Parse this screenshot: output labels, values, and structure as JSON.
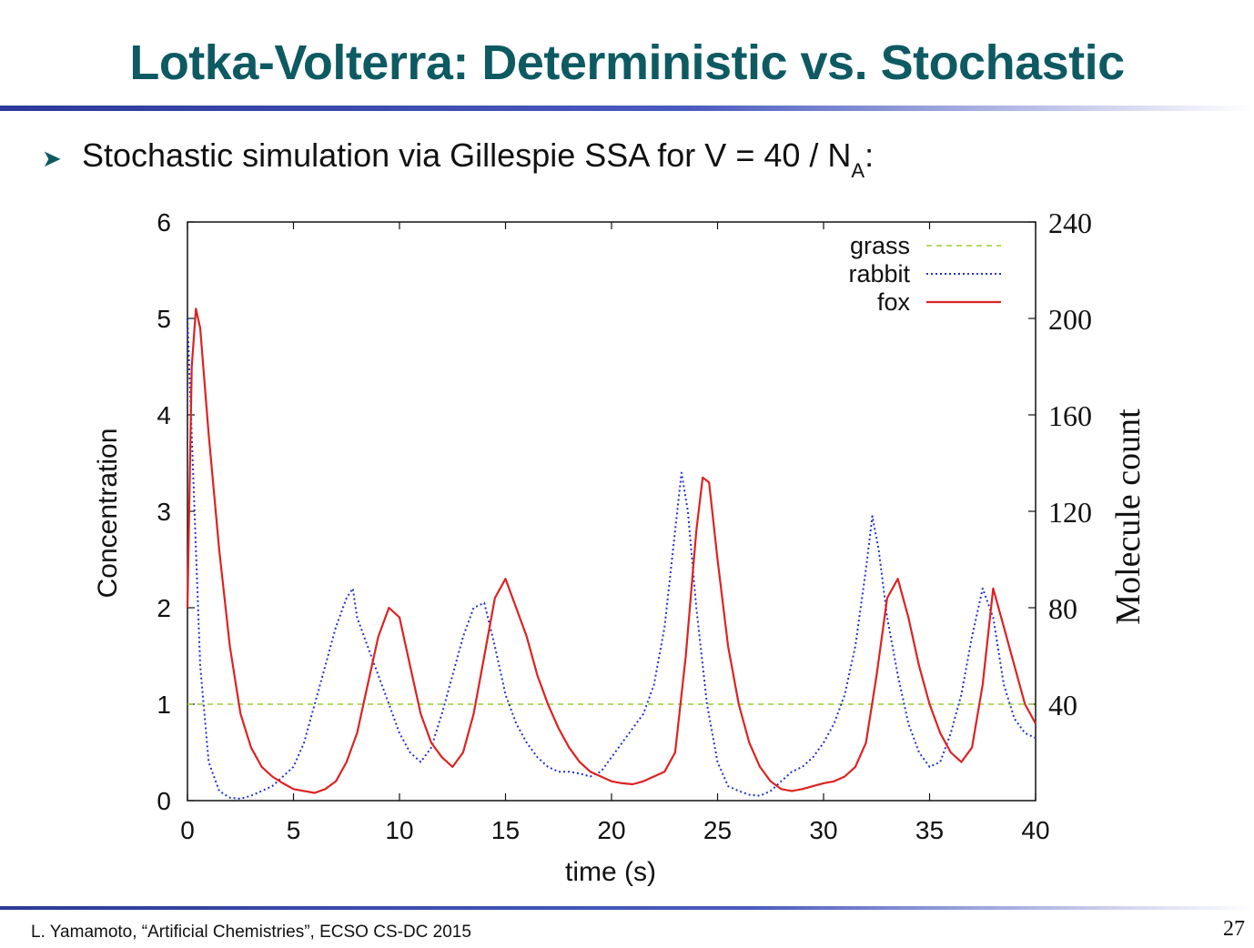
{
  "slide": {
    "title": "Lotka-Volterra: Deterministic vs. Stochastic",
    "bullet_icon": "arrowhead-bullet-icon",
    "subtitle_main": "Stochastic simulation via Gillespie SSA for V = 40 / N",
    "subtitle_sub": "A",
    "subtitle_tail": ":",
    "footer": "L. Yamamoto, “Artificial Chemistries”, ECSO CS-DC 2015",
    "page": "27",
    "colors": {
      "title": "#0e5a63",
      "rule": "#2b3a9a"
    }
  },
  "chart_data": {
    "type": "line",
    "title": "",
    "xlabel": "time (s)",
    "ylabel": "Concentration",
    "y2label": "Molecule count",
    "xlim": [
      0,
      40
    ],
    "ylim": [
      0,
      6
    ],
    "y2lim": [
      0,
      240
    ],
    "xticks": [
      "0",
      "5",
      "10",
      "15",
      "20",
      "25",
      "30",
      "35",
      "40"
    ],
    "yticks": [
      "0",
      "1",
      "2",
      "3",
      "4",
      "5",
      "6"
    ],
    "y2ticks": [
      "40",
      "80",
      "120",
      "160",
      "200",
      "240"
    ],
    "grid": false,
    "legend_position": "top-right",
    "series": [
      {
        "name": "grass",
        "color": "#9acd32",
        "style": "dashed",
        "x": [
          0,
          40
        ],
        "y": [
          1.0,
          1.0
        ]
      },
      {
        "name": "rabbit",
        "color": "#2233cc",
        "style": "dotted",
        "x": [
          0,
          0.3,
          0.6,
          1.0,
          1.5,
          2.0,
          2.5,
          3.0,
          3.5,
          4.0,
          4.5,
          5.0,
          5.5,
          6.0,
          6.5,
          7.0,
          7.5,
          7.8,
          8.0,
          8.5,
          9.0,
          9.5,
          10.0,
          10.5,
          11.0,
          11.5,
          12.0,
          12.5,
          13.0,
          13.5,
          14.0,
          14.5,
          15.0,
          15.5,
          16.0,
          16.5,
          17.0,
          17.5,
          18.0,
          18.5,
          19.0,
          19.5,
          20.0,
          20.5,
          21.0,
          21.5,
          22.0,
          22.5,
          23.0,
          23.3,
          23.6,
          24.0,
          24.5,
          25.0,
          25.5,
          26.0,
          26.5,
          27.0,
          27.5,
          28.0,
          28.5,
          29.0,
          29.5,
          30.0,
          30.5,
          31.0,
          31.5,
          32.0,
          32.3,
          32.6,
          33.0,
          33.5,
          34.0,
          34.5,
          35.0,
          35.5,
          36.0,
          36.5,
          37.0,
          37.5,
          38.0,
          38.5,
          39.0,
          39.5,
          40.0
        ],
        "y": [
          5.0,
          3.2,
          1.4,
          0.4,
          0.1,
          0.03,
          0.02,
          0.05,
          0.1,
          0.15,
          0.25,
          0.35,
          0.6,
          1.0,
          1.4,
          1.8,
          2.1,
          2.2,
          1.9,
          1.6,
          1.3,
          1.0,
          0.7,
          0.5,
          0.4,
          0.55,
          0.9,
          1.3,
          1.7,
          2.0,
          2.05,
          1.6,
          1.1,
          0.8,
          0.6,
          0.45,
          0.35,
          0.3,
          0.3,
          0.28,
          0.25,
          0.3,
          0.45,
          0.6,
          0.75,
          0.9,
          1.2,
          1.8,
          2.8,
          3.4,
          3.0,
          2.0,
          1.0,
          0.4,
          0.15,
          0.1,
          0.06,
          0.05,
          0.1,
          0.2,
          0.3,
          0.35,
          0.45,
          0.6,
          0.8,
          1.1,
          1.6,
          2.4,
          2.95,
          2.6,
          1.9,
          1.3,
          0.8,
          0.5,
          0.35,
          0.4,
          0.7,
          1.1,
          1.7,
          2.2,
          1.9,
          1.2,
          0.85,
          0.7,
          0.65
        ]
      },
      {
        "name": "fox",
        "color": "#dd2222",
        "style": "solid",
        "x": [
          0,
          0.2,
          0.4,
          0.6,
          1.0,
          1.5,
          2.0,
          2.5,
          3.0,
          3.5,
          4.0,
          4.5,
          5.0,
          5.5,
          6.0,
          6.5,
          7.0,
          7.5,
          8.0,
          8.5,
          9.0,
          9.5,
          10.0,
          10.5,
          11.0,
          11.5,
          12.0,
          12.5,
          13.0,
          13.5,
          14.0,
          14.5,
          15.0,
          15.5,
          16.0,
          16.5,
          17.0,
          17.5,
          18.0,
          18.5,
          19.0,
          19.5,
          20.0,
          20.5,
          21.0,
          21.5,
          22.0,
          22.5,
          23.0,
          23.5,
          24.0,
          24.3,
          24.6,
          25.0,
          25.5,
          26.0,
          26.5,
          27.0,
          27.5,
          28.0,
          28.5,
          29.0,
          29.5,
          30.0,
          30.5,
          31.0,
          31.5,
          32.0,
          32.5,
          33.0,
          33.5,
          34.0,
          34.5,
          35.0,
          35.5,
          36.0,
          36.5,
          37.0,
          37.5,
          38.0,
          38.5,
          39.0,
          39.5,
          40.0
        ],
        "y": [
          2.0,
          4.5,
          5.1,
          4.9,
          3.8,
          2.6,
          1.6,
          0.9,
          0.55,
          0.35,
          0.25,
          0.18,
          0.12,
          0.1,
          0.08,
          0.12,
          0.2,
          0.4,
          0.7,
          1.2,
          1.7,
          2.0,
          1.9,
          1.4,
          0.9,
          0.6,
          0.45,
          0.35,
          0.5,
          0.9,
          1.5,
          2.1,
          2.3,
          2.0,
          1.7,
          1.3,
          1.0,
          0.75,
          0.55,
          0.4,
          0.3,
          0.25,
          0.2,
          0.18,
          0.17,
          0.2,
          0.25,
          0.3,
          0.5,
          1.5,
          2.8,
          3.35,
          3.3,
          2.5,
          1.6,
          1.0,
          0.6,
          0.35,
          0.2,
          0.12,
          0.1,
          0.12,
          0.15,
          0.18,
          0.2,
          0.25,
          0.35,
          0.6,
          1.3,
          2.1,
          2.3,
          1.9,
          1.4,
          1.0,
          0.7,
          0.5,
          0.4,
          0.55,
          1.2,
          2.2,
          1.8,
          1.4,
          1.0,
          0.8
        ]
      }
    ]
  }
}
